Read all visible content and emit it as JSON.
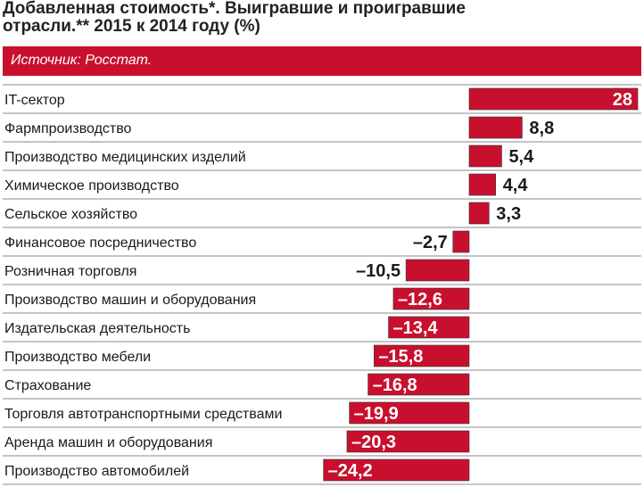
{
  "header": {
    "title_line1": "Добавленная стоимость*. Выигравшие и проигравшие",
    "title_line2": "отрасли.** 2015 к 2014 году (%)",
    "source": "Источник: Росстат."
  },
  "colors": {
    "bar": "#c8102e",
    "row_line": "#888888",
    "bar_edge": "#333333",
    "inside_label": "#ffffff"
  },
  "chart_data": {
    "type": "bar",
    "orientation": "horizontal",
    "categories": [
      "IT-сектор",
      "Фармпроизводство",
      "Производство  медицинских изделий",
      "Химическое производство",
      "Сельское хозяйство",
      "Финансовое посредничество",
      "Розничная  торговля",
      "Производство машин и оборудования",
      "Издательская деятельность",
      "Производство мебели",
      "Страхование",
      "Торговля автотранспортными средствами",
      "Аренда машин и оборудования",
      "Производство автомобилей"
    ],
    "values": [
      28,
      8.8,
      5.4,
      4.4,
      3.3,
      -2.7,
      -10.5,
      -12.6,
      -13.4,
      -15.8,
      -16.8,
      -19.9,
      -20.3,
      -24.2
    ],
    "value_labels": [
      "28",
      "8,8",
      "5,4",
      "4,4",
      "3,3",
      "–2,7",
      "–10,5",
      "–12,6",
      "–13,4",
      "–15,8",
      "–16,8",
      "–19,9",
      "–20,3",
      "–24,2"
    ],
    "xlim": [
      -24.2,
      28
    ],
    "grid": false,
    "legend": "none",
    "title": "Добавленная стоимость*. Выигравшие и проигравшие отрасли.** 2015 к 2014 году (%)",
    "xlabel": "",
    "ylabel": ""
  }
}
